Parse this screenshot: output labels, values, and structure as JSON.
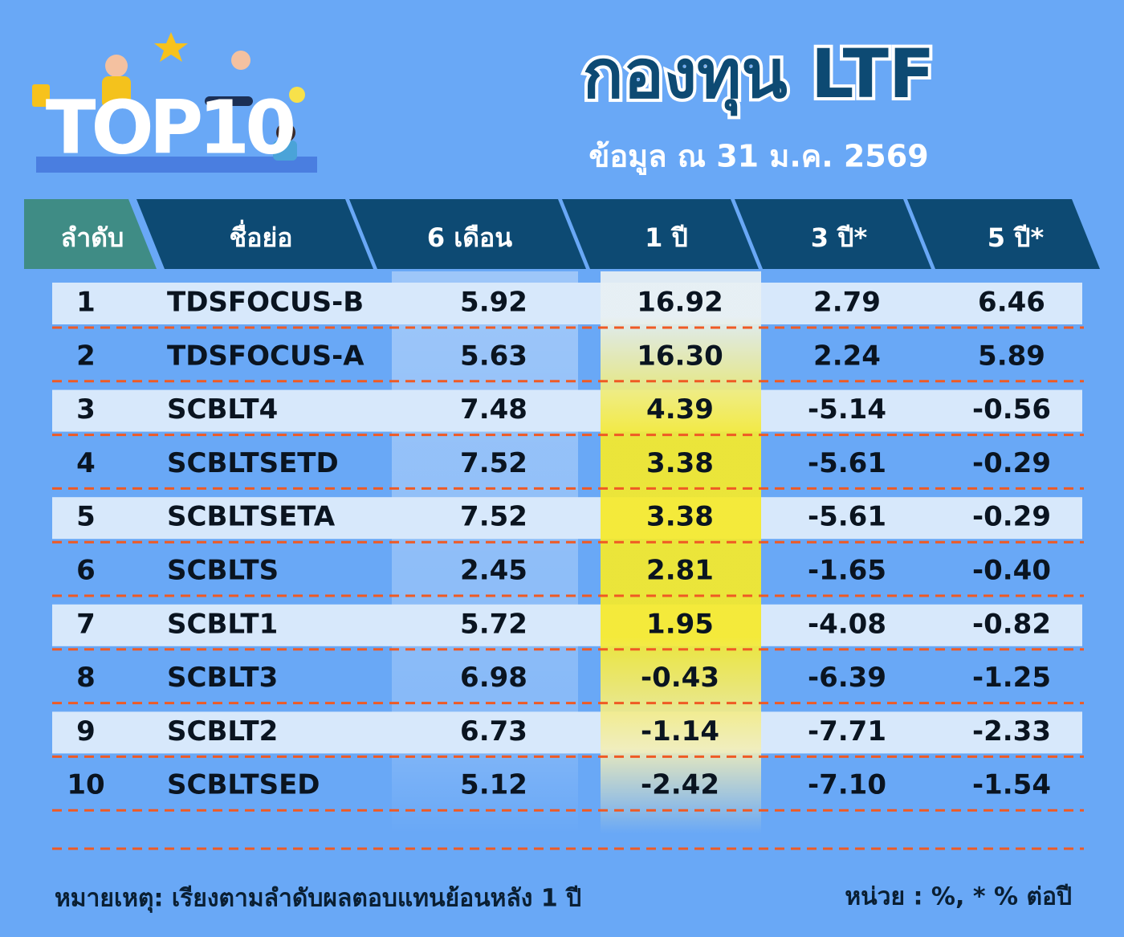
{
  "header": {
    "logo": "TOP10",
    "title": "กองทุน LTF",
    "subtitle": "ข้อมูล ณ 31 ม.ค. 2569"
  },
  "table": {
    "columns": [
      "ลำดับ",
      "ชื่อย่อ",
      "6 เดือน",
      "1 ปี",
      "3 ปี*",
      "5 ปี*"
    ],
    "rows": [
      [
        "1",
        "TDSFOCUS-B",
        "5.92",
        "16.92",
        "2.79",
        "6.46"
      ],
      [
        "2",
        "TDSFOCUS-A",
        "5.63",
        "16.30",
        "2.24",
        "5.89"
      ],
      [
        "3",
        "SCBLT4",
        "7.48",
        "4.39",
        "-5.14",
        "-0.56"
      ],
      [
        "4",
        "SCBLTSETD",
        "7.52",
        "3.38",
        "-5.61",
        "-0.29"
      ],
      [
        "5",
        "SCBLTSETA",
        "7.52",
        "3.38",
        "-5.61",
        "-0.29"
      ],
      [
        "6",
        "SCBLTS",
        "2.45",
        "2.81",
        "-1.65",
        "-0.40"
      ],
      [
        "7",
        "SCBLT1",
        "5.72",
        "1.95",
        "-4.08",
        "-0.82"
      ],
      [
        "8",
        "SCBLT3",
        "6.98",
        "-0.43",
        "-6.39",
        "-1.25"
      ],
      [
        "9",
        "SCBLT2",
        "6.73",
        "-1.14",
        "-7.71",
        "-2.33"
      ],
      [
        "10",
        "SCBLTSED",
        "5.12",
        "-2.42",
        "-7.10",
        "-1.54"
      ]
    ]
  },
  "footer": {
    "note": "หมายเหตุ: เรียงตามลำดับผลตอบแทนย้อนหลัง 1 ปี",
    "unit": "หน่วย : %, * % ต่อปี"
  }
}
